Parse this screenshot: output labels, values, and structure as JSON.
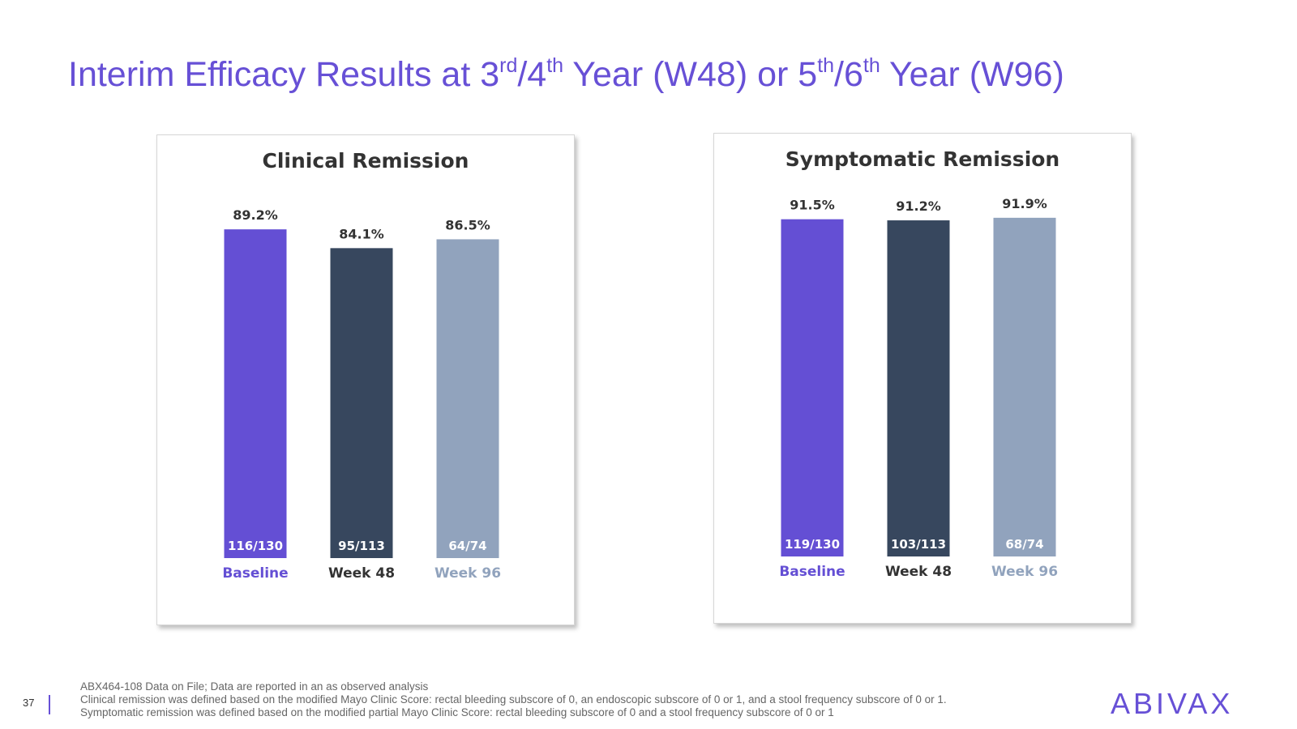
{
  "slide": {
    "title_parts": {
      "p1": "Interim Efficacy Results at 3",
      "s1": "rd",
      "p2": "/4",
      "s2": "th",
      "p3": " Year (W48) or 5",
      "s3": "th",
      "p4": "/6",
      "s4": "th",
      "p5": " Year (W96)"
    },
    "page_number": "37",
    "footnotes": [
      "ABX464-108 Data on File; Data are reported in an as observed analysis",
      "Clinical remission was defined based on the modified Mayo Clinic Score: rectal bleeding subscore of 0, an endoscopic subscore of 0 or 1, and a stool frequency subscore of 0 or 1.",
      "Symptomatic remission was defined based on the modified partial Mayo Clinic Score: rectal bleeding subscore of 0 and a stool frequency subscore of 0 or 1"
    ],
    "logo_text": "ABIVAX"
  },
  "colors": {
    "baseline": "#644fd4",
    "week48": "#37475e",
    "week96": "#91a3bd",
    "title": "#6750d6"
  },
  "chart_data": [
    {
      "type": "bar",
      "title": "Clinical Remission",
      "categories": [
        "Baseline",
        "Week 48",
        "Week 96"
      ],
      "values": [
        89.2,
        84.1,
        86.5
      ],
      "value_labels": [
        "89.2%",
        "84.1%",
        "86.5%"
      ],
      "n_labels": [
        "116/130",
        "95/113",
        "64/74"
      ],
      "ylim": [
        0,
        100
      ],
      "grid": false,
      "legend": "none"
    },
    {
      "type": "bar",
      "title": "Symptomatic Remission",
      "categories": [
        "Baseline",
        "Week 48",
        "Week 96"
      ],
      "values": [
        91.5,
        91.2,
        91.9
      ],
      "value_labels": [
        "91.5%",
        "91.2%",
        "91.9%"
      ],
      "n_labels": [
        "119/130",
        "103/113",
        "68/74"
      ],
      "ylim": [
        0,
        100
      ],
      "grid": false,
      "legend": "none"
    }
  ]
}
